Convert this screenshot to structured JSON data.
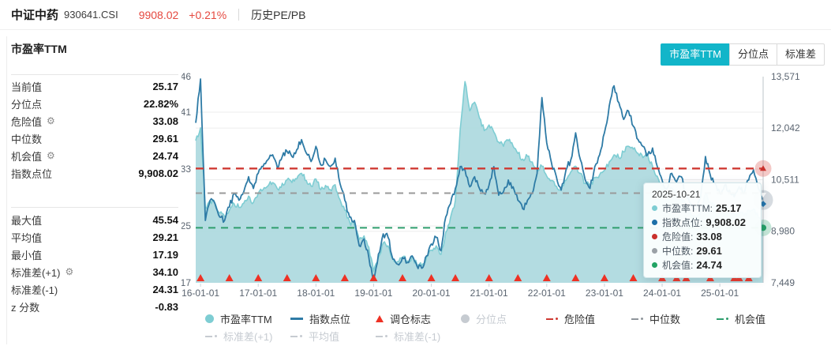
{
  "header": {
    "title": "中证中药",
    "code": "930641.CSI",
    "price": "9908.02",
    "change": "+0.21%",
    "nav": "历史PE/PB",
    "price_color": "#e5483f"
  },
  "tabs": [
    {
      "key": "pe-ttm",
      "label": "市盈率TTM",
      "active": true
    },
    {
      "key": "percentile",
      "label": "分位点",
      "active": false
    },
    {
      "key": "std",
      "label": "标准差",
      "active": false
    }
  ],
  "panel": {
    "title": "市盈率TTM",
    "group1": [
      {
        "key": "current",
        "label": "当前值",
        "value": "25.17",
        "gear": false
      },
      {
        "key": "percentile",
        "label": "分位点",
        "value": "22.82%",
        "gear": false
      },
      {
        "key": "danger",
        "label": "危险值",
        "value": "33.08",
        "gear": true
      },
      {
        "key": "median",
        "label": "中位数",
        "value": "29.61",
        "gear": false
      },
      {
        "key": "opportunity",
        "label": "机会值",
        "value": "24.74",
        "gear": true
      },
      {
        "key": "index-point",
        "label": "指数点位",
        "value": "9,908.02",
        "gear": false
      }
    ],
    "group2": [
      {
        "key": "max",
        "label": "最大值",
        "value": "45.54",
        "gear": false
      },
      {
        "key": "mean",
        "label": "平均值",
        "value": "29.21",
        "gear": false
      },
      {
        "key": "min",
        "label": "最小值",
        "value": "17.19",
        "gear": false
      },
      {
        "key": "std-plus1",
        "label": "标准差(+1)",
        "value": "34.10",
        "gear": true
      },
      {
        "key": "std-minus1",
        "label": "标准差(-1)",
        "value": "24.31",
        "gear": false
      },
      {
        "key": "z-score",
        "label": "z 分数",
        "value": "-0.83",
        "gear": false
      }
    ]
  },
  "tooltip": {
    "date": "2025-10-21",
    "rows": [
      {
        "key": "pe-ttm",
        "label": "市盈率TTM",
        "value": "25.17",
        "color": "#7ecdd3"
      },
      {
        "key": "index-point",
        "label": "指数点位",
        "value": "9,908.02",
        "color": "#1d6fa8"
      },
      {
        "key": "danger",
        "label": "危险值",
        "value": "33.08",
        "color": "#c9302c"
      },
      {
        "key": "median",
        "label": "中位数",
        "value": "29.61",
        "color": "#9aa0a6"
      },
      {
        "key": "opportunity",
        "label": "机会值",
        "value": "24.74",
        "color": "#21a364"
      }
    ]
  },
  "legend": {
    "row1": [
      {
        "key": "pe-ttm",
        "label": "市盈率TTM",
        "marker": "circle",
        "color": "#7ecdd3",
        "enabled": true
      },
      {
        "key": "index-point",
        "label": "指数点位",
        "marker": "line",
        "color": "#2e7ba6",
        "enabled": true
      },
      {
        "key": "rebalance",
        "label": "调仓标志",
        "marker": "triangle",
        "color": "#ee3124",
        "enabled": true
      },
      {
        "key": "percentile",
        "label": "分位点",
        "marker": "circle",
        "color": "#c6cbd1",
        "enabled": false
      },
      {
        "key": "danger",
        "label": "危险值",
        "marker": "dashdot",
        "color": "#cf3a33",
        "enabled": true
      },
      {
        "key": "median",
        "label": "中位数",
        "marker": "dashdot",
        "color": "#8f959b",
        "enabled": true
      },
      {
        "key": "opportunity",
        "label": "机会值",
        "marker": "dashdot",
        "color": "#2f9e6e",
        "enabled": true
      }
    ],
    "row2": [
      {
        "key": "std-plus1",
        "label": "标准差(+1)",
        "marker": "dashdot",
        "color": "#c6cbd1",
        "enabled": false
      },
      {
        "key": "mean",
        "label": "平均值",
        "marker": "dashdot",
        "color": "#c6cbd1",
        "enabled": false
      },
      {
        "key": "std-minus1",
        "label": "标准差(-1)",
        "marker": "dashdot",
        "color": "#c6cbd1",
        "enabled": false
      }
    ]
  },
  "chart_data": {
    "type": "area",
    "title": "市盈率TTM 与 指数点位 历史走势",
    "x_start_month": "2015-12",
    "x_labels": [
      "16-01-01",
      "17-01-01",
      "18-01-01",
      "19-01-01",
      "20-01-01",
      "21-01-01",
      "22-01-01",
      "23-01-01",
      "24-01-01",
      "25-01-01"
    ],
    "left_axis": {
      "label": "市盈率TTM",
      "min": 17,
      "max": 46,
      "ticks": [
        46,
        41,
        33,
        25,
        17
      ]
    },
    "right_axis": {
      "label": "指数点位",
      "min": 7449,
      "max": 13571,
      "ticks": [
        13571,
        12042,
        10511,
        8980,
        7449
      ],
      "tick_labels": [
        "13,571",
        "12,042",
        "10,511",
        "8,980",
        "7,449"
      ]
    },
    "series": [
      {
        "name": "市盈率TTM",
        "type": "area",
        "axis": "left",
        "fill_color": "#add9de",
        "line_color": "#7ecdd3",
        "values": [
          37.0,
          38.8,
          27.6,
          28.6,
          28.2,
          26.8,
          26.3,
          27.2,
          28.1,
          27.6,
          28.2,
          29.2,
          28.3,
          29.6,
          30.1,
          30.6,
          31.1,
          30.2,
          31.0,
          31.5,
          31.1,
          31.6,
          32.4,
          31.4,
          30.6,
          31.6,
          30.1,
          30.7,
          30.1,
          30.8,
          28.7,
          27.2,
          25.6,
          25.1,
          23.1,
          23.6,
          22.0,
          18.6,
          20.6,
          22.6,
          22.2,
          20.4,
          20.0,
          20.6,
          20.1,
          20.6,
          19.6,
          19.4,
          20.6,
          21.6,
          22.2,
          21.0,
          24.1,
          26.2,
          28.6,
          38.5,
          45.3,
          41.2,
          42.4,
          40.2,
          38.4,
          39.2,
          38.2,
          36.8,
          36.2,
          37.0,
          36.2,
          35.2,
          34.4,
          34.8,
          34.0,
          32.8,
          33.4,
          32.0,
          31.4,
          30.6,
          30.2,
          31.4,
          32.6,
          33.4,
          32.4,
          31.0,
          30.6,
          31.8,
          32.2,
          32.8,
          34.0,
          35.0,
          34.6,
          35.4,
          36.2,
          35.8,
          35.2,
          34.6,
          35.0,
          33.4,
          32.0,
          30.6,
          29.6,
          30.4,
          29.4,
          29.0,
          27.6,
          26.6,
          26.1,
          27.0,
          29.4,
          28.4,
          28.0,
          27.2,
          27.6,
          27.3,
          26.6,
          27.0,
          26.4,
          27.2,
          27.4,
          26.2,
          25.17
        ]
      },
      {
        "name": "指数点位",
        "type": "line",
        "axis": "right",
        "line_color": "#2e7ba6",
        "values": [
          12200,
          13500,
          9300,
          9900,
          9800,
          9400,
          9300,
          9700,
          10100,
          9900,
          10150,
          10600,
          10250,
          10700,
          10900,
          11100,
          11250,
          10850,
          11200,
          11350,
          11200,
          11400,
          11700,
          11300,
          11050,
          11500,
          10950,
          11100,
          10900,
          11150,
          10400,
          9900,
          9400,
          9300,
          8550,
          8750,
          8200,
          7550,
          8300,
          8900,
          8800,
          8150,
          8000,
          8200,
          8050,
          8250,
          7950,
          7880,
          8250,
          8600,
          8800,
          8400,
          9400,
          9800,
          10250,
          10900,
          10800,
          10300,
          10600,
          10250,
          10100,
          10350,
          10900,
          10050,
          10150,
          10500,
          10300,
          9900,
          9650,
          9900,
          10100,
          10700,
          12950,
          11600,
          11000,
          10600,
          10200,
          10800,
          11100,
          11900,
          11100,
          10500,
          10250,
          10900,
          11250,
          11900,
          12700,
          13300,
          12800,
          12300,
          12550,
          12100,
          11700,
          11500,
          11250,
          11450,
          10900,
          10500,
          10250,
          10700,
          10450,
          10600,
          10050,
          9800,
          9600,
          10000,
          11200,
          10650,
          10400,
          10100,
          10350,
          10200,
          10000,
          10300,
          10100,
          10500,
          10800,
          10250,
          9908
        ]
      }
    ],
    "ref_lines": [
      {
        "key": "danger",
        "name": "危险值",
        "value": 33.08,
        "axis": "left",
        "color": "#cf3a33",
        "style": "dashed"
      },
      {
        "key": "median",
        "name": "中位数",
        "value": 29.61,
        "axis": "left",
        "color": "#9a9a9a",
        "style": "dashed"
      },
      {
        "key": "opportunity",
        "name": "机会值",
        "value": 24.74,
        "axis": "left",
        "color": "#2f9e6e",
        "style": "dashed"
      }
    ],
    "rebalance_markers": {
      "name": "调仓标志",
      "color": "#ee3124",
      "dates": [
        "2016-01",
        "2016-07",
        "2017-01",
        "2017-07",
        "2018-01",
        "2018-07",
        "2019-01",
        "2019-07",
        "2020-01",
        "2020-06",
        "2021-01",
        "2021-07",
        "2022-01",
        "2022-07",
        "2023-01",
        "2023-07",
        "2024-01",
        "2024-04",
        "2024-06",
        "2024-11",
        "2025-04",
        "2025-05",
        "2025-07"
      ]
    },
    "last_point": {
      "date": "2025-10-21",
      "pe": 25.17,
      "index": 9908.02
    },
    "grid": true,
    "legend_position": "bottom"
  }
}
